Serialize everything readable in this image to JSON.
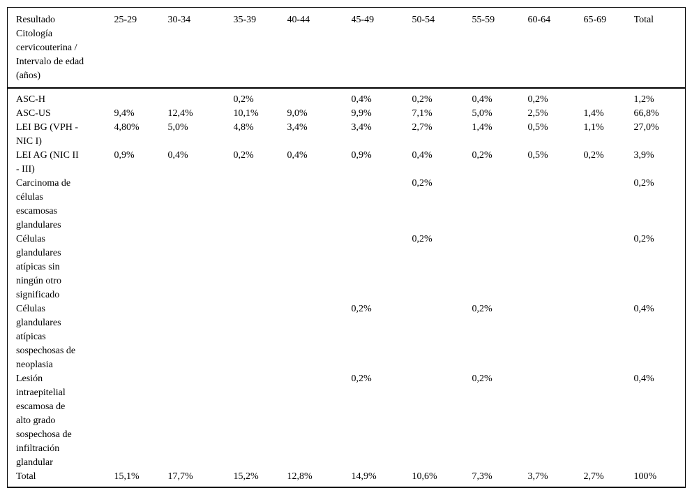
{
  "colors": {
    "text": "#000000",
    "border": "#000000",
    "background": "#ffffff"
  },
  "table": {
    "header_label": "Resultado\nCitología\ncervicouterina /\nIntervalo de edad\n(años)",
    "columns": [
      "25-29",
      "30-34",
      "35-39",
      "40-44",
      "45-49",
      "50-54",
      "55-59",
      "60-64",
      "65-69",
      "Total"
    ],
    "rows": [
      {
        "label": "ASC-H",
        "values": [
          "",
          "",
          "0,2%",
          "",
          "0,4%",
          "0,2%",
          "0,4%",
          "0,2%",
          "",
          "1,2%"
        ]
      },
      {
        "label": "ASC-US",
        "values": [
          "9,4%",
          "12,4%",
          "10,1%",
          "9,0%",
          "9,9%",
          "7,1%",
          "5,0%",
          "2,5%",
          "1,4%",
          "66,8%"
        ]
      },
      {
        "label": "LEI BG (VPH -\nNIC I)",
        "values": [
          "4,80%",
          "5,0%",
          "4,8%",
          "3,4%",
          "3,4%",
          "2,7%",
          "1,4%",
          "0,5%",
          "1,1%",
          "27,0%"
        ]
      },
      {
        "label": "LEI AG (NIC II\n- III)",
        "values": [
          "0,9%",
          "0,4%",
          "0,2%",
          "0,4%",
          "0,9%",
          "0,4%",
          "0,2%",
          "0,5%",
          "0,2%",
          "3,9%"
        ]
      },
      {
        "label": "Carcinoma de\ncélulas\nescamosas\nglandulares",
        "values": [
          "",
          "",
          "",
          "",
          "",
          "0,2%",
          "",
          "",
          "",
          "0,2%"
        ]
      },
      {
        "label": "Células\nglandulares\natípicas sin\nningún otro\nsignificado",
        "values": [
          "",
          "",
          "",
          "",
          "",
          "0,2%",
          "",
          "",
          "",
          "0,2%"
        ]
      },
      {
        "label": "Células\nglandulares\natípicas\nsospechosas de\nneoplasia",
        "values": [
          "",
          "",
          "",
          "",
          "0,2%",
          "",
          "0,2%",
          "",
          "",
          "0,4%"
        ]
      },
      {
        "label": "Lesión\nintraepitelial\nescamosa de\nalto grado\nsospechosa de\ninfiltración\nglandular",
        "values": [
          "",
          "",
          "",
          "",
          "0,2%",
          "",
          "0,2%",
          "",
          "",
          "0,4%"
        ]
      },
      {
        "label": "Total",
        "values": [
          "15,1%",
          "17,7%",
          "15,2%",
          "12,8%",
          "14,9%",
          "10,6%",
          "7,3%",
          "3,7%",
          "2,7%",
          "100%"
        ]
      }
    ]
  }
}
